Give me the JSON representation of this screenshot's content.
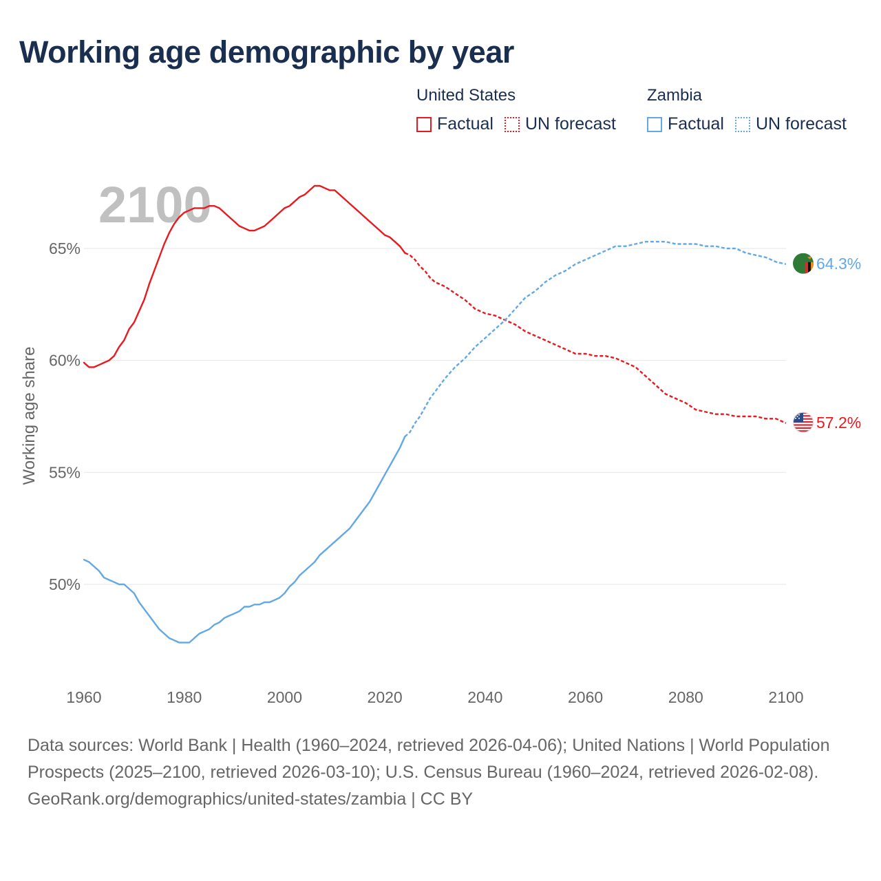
{
  "header": {
    "title": "Working age demographic by year"
  },
  "legend": {
    "groups": [
      {
        "name": "United States",
        "color": "#e8191f",
        "factual_label": "Factual",
        "forecast_label": "UN forecast"
      },
      {
        "name": "Zambia",
        "color": "#62a8e5",
        "factual_label": "Factual",
        "forecast_label": "UN forecast"
      }
    ]
  },
  "chart_data": {
    "type": "line",
    "title": "Working age demographic by year",
    "year_watermark": "2100",
    "xlabel": "",
    "ylabel": "Working age share",
    "xlim": [
      1960,
      2100
    ],
    "ylim": [
      46,
      68.5
    ],
    "x_ticks": [
      1960,
      1980,
      2000,
      2020,
      2040,
      2060,
      2080,
      2100
    ],
    "y_ticks": [
      50,
      55,
      60,
      65
    ],
    "y_tick_labels": [
      "50%",
      "55%",
      "60%",
      "65%"
    ],
    "grid": true,
    "forecast_start": 2024,
    "series": [
      {
        "name": "United States",
        "color": "#e8191f",
        "end_label": "57.2%",
        "flag": "us-flag",
        "points": [
          [
            1960,
            59.9
          ],
          [
            1961,
            59.7
          ],
          [
            1962,
            59.7
          ],
          [
            1963,
            59.8
          ],
          [
            1964,
            59.9
          ],
          [
            1965,
            60.0
          ],
          [
            1966,
            60.2
          ],
          [
            1967,
            60.6
          ],
          [
            1968,
            60.9
          ],
          [
            1969,
            61.4
          ],
          [
            1970,
            61.7
          ],
          [
            1971,
            62.2
          ],
          [
            1972,
            62.7
          ],
          [
            1973,
            63.4
          ],
          [
            1974,
            64.0
          ],
          [
            1975,
            64.6
          ],
          [
            1976,
            65.2
          ],
          [
            1977,
            65.7
          ],
          [
            1978,
            66.1
          ],
          [
            1979,
            66.4
          ],
          [
            1980,
            66.6
          ],
          [
            1981,
            66.7
          ],
          [
            1982,
            66.8
          ],
          [
            1983,
            66.8
          ],
          [
            1984,
            66.8
          ],
          [
            1985,
            66.9
          ],
          [
            1986,
            66.9
          ],
          [
            1987,
            66.8
          ],
          [
            1988,
            66.6
          ],
          [
            1989,
            66.4
          ],
          [
            1990,
            66.2
          ],
          [
            1991,
            66.0
          ],
          [
            1992,
            65.9
          ],
          [
            1993,
            65.8
          ],
          [
            1994,
            65.8
          ],
          [
            1995,
            65.9
          ],
          [
            1996,
            66.0
          ],
          [
            1997,
            66.2
          ],
          [
            1998,
            66.4
          ],
          [
            1999,
            66.6
          ],
          [
            2000,
            66.8
          ],
          [
            2001,
            66.9
          ],
          [
            2002,
            67.1
          ],
          [
            2003,
            67.3
          ],
          [
            2004,
            67.4
          ],
          [
            2005,
            67.6
          ],
          [
            2006,
            67.8
          ],
          [
            2007,
            67.8
          ],
          [
            2008,
            67.7
          ],
          [
            2009,
            67.6
          ],
          [
            2010,
            67.6
          ],
          [
            2011,
            67.4
          ],
          [
            2012,
            67.2
          ],
          [
            2013,
            67.0
          ],
          [
            2014,
            66.8
          ],
          [
            2015,
            66.6
          ],
          [
            2016,
            66.4
          ],
          [
            2017,
            66.2
          ],
          [
            2018,
            66.0
          ],
          [
            2019,
            65.8
          ],
          [
            2020,
            65.6
          ],
          [
            2021,
            65.5
          ],
          [
            2022,
            65.3
          ],
          [
            2023,
            65.1
          ],
          [
            2024,
            64.8
          ],
          [
            2025,
            64.7
          ],
          [
            2026,
            64.5
          ],
          [
            2027,
            64.2
          ],
          [
            2028,
            64.0
          ],
          [
            2029,
            63.7
          ],
          [
            2030,
            63.5
          ],
          [
            2032,
            63.3
          ],
          [
            2034,
            63.0
          ],
          [
            2036,
            62.7
          ],
          [
            2038,
            62.3
          ],
          [
            2040,
            62.1
          ],
          [
            2042,
            62.0
          ],
          [
            2044,
            61.8
          ],
          [
            2046,
            61.6
          ],
          [
            2048,
            61.3
          ],
          [
            2050,
            61.1
          ],
          [
            2052,
            60.9
          ],
          [
            2054,
            60.7
          ],
          [
            2056,
            60.5
          ],
          [
            2058,
            60.3
          ],
          [
            2060,
            60.3
          ],
          [
            2062,
            60.2
          ],
          [
            2064,
            60.2
          ],
          [
            2066,
            60.1
          ],
          [
            2068,
            59.9
          ],
          [
            2070,
            59.7
          ],
          [
            2072,
            59.3
          ],
          [
            2074,
            58.9
          ],
          [
            2076,
            58.5
          ],
          [
            2078,
            58.3
          ],
          [
            2080,
            58.1
          ],
          [
            2082,
            57.8
          ],
          [
            2084,
            57.7
          ],
          [
            2086,
            57.6
          ],
          [
            2088,
            57.6
          ],
          [
            2090,
            57.5
          ],
          [
            2092,
            57.5
          ],
          [
            2094,
            57.5
          ],
          [
            2096,
            57.4
          ],
          [
            2098,
            57.4
          ],
          [
            2100,
            57.2
          ]
        ]
      },
      {
        "name": "Zambia",
        "color": "#62a8e5",
        "end_label": "64.3%",
        "flag": "zambia-flag",
        "points": [
          [
            1960,
            51.1
          ],
          [
            1961,
            51.0
          ],
          [
            1962,
            50.8
          ],
          [
            1963,
            50.6
          ],
          [
            1964,
            50.3
          ],
          [
            1965,
            50.2
          ],
          [
            1966,
            50.1
          ],
          [
            1967,
            50.0
          ],
          [
            1968,
            50.0
          ],
          [
            1969,
            49.8
          ],
          [
            1970,
            49.6
          ],
          [
            1971,
            49.2
          ],
          [
            1972,
            48.9
          ],
          [
            1973,
            48.6
          ],
          [
            1974,
            48.3
          ],
          [
            1975,
            48.0
          ],
          [
            1976,
            47.8
          ],
          [
            1977,
            47.6
          ],
          [
            1978,
            47.5
          ],
          [
            1979,
            47.4
          ],
          [
            1980,
            47.4
          ],
          [
            1981,
            47.4
          ],
          [
            1982,
            47.6
          ],
          [
            1983,
            47.8
          ],
          [
            1984,
            47.9
          ],
          [
            1985,
            48.0
          ],
          [
            1986,
            48.2
          ],
          [
            1987,
            48.3
          ],
          [
            1988,
            48.5
          ],
          [
            1989,
            48.6
          ],
          [
            1990,
            48.7
          ],
          [
            1991,
            48.8
          ],
          [
            1992,
            49.0
          ],
          [
            1993,
            49.0
          ],
          [
            1994,
            49.1
          ],
          [
            1995,
            49.1
          ],
          [
            1996,
            49.2
          ],
          [
            1997,
            49.2
          ],
          [
            1998,
            49.3
          ],
          [
            1999,
            49.4
          ],
          [
            2000,
            49.6
          ],
          [
            2001,
            49.9
          ],
          [
            2002,
            50.1
          ],
          [
            2003,
            50.4
          ],
          [
            2004,
            50.6
          ],
          [
            2005,
            50.8
          ],
          [
            2006,
            51.0
          ],
          [
            2007,
            51.3
          ],
          [
            2008,
            51.5
          ],
          [
            2009,
            51.7
          ],
          [
            2010,
            51.9
          ],
          [
            2011,
            52.1
          ],
          [
            2012,
            52.3
          ],
          [
            2013,
            52.5
          ],
          [
            2014,
            52.8
          ],
          [
            2015,
            53.1
          ],
          [
            2016,
            53.4
          ],
          [
            2017,
            53.7
          ],
          [
            2018,
            54.1
          ],
          [
            2019,
            54.5
          ],
          [
            2020,
            54.9
          ],
          [
            2021,
            55.3
          ],
          [
            2022,
            55.7
          ],
          [
            2023,
            56.1
          ],
          [
            2024,
            56.6
          ],
          [
            2025,
            56.8
          ],
          [
            2026,
            57.2
          ],
          [
            2027,
            57.5
          ],
          [
            2028,
            57.9
          ],
          [
            2029,
            58.3
          ],
          [
            2030,
            58.6
          ],
          [
            2032,
            59.2
          ],
          [
            2034,
            59.7
          ],
          [
            2036,
            60.1
          ],
          [
            2038,
            60.6
          ],
          [
            2040,
            61.0
          ],
          [
            2042,
            61.4
          ],
          [
            2044,
            61.8
          ],
          [
            2046,
            62.3
          ],
          [
            2048,
            62.8
          ],
          [
            2050,
            63.1
          ],
          [
            2052,
            63.5
          ],
          [
            2054,
            63.8
          ],
          [
            2056,
            64.0
          ],
          [
            2058,
            64.3
          ],
          [
            2060,
            64.5
          ],
          [
            2062,
            64.7
          ],
          [
            2064,
            64.9
          ],
          [
            2066,
            65.1
          ],
          [
            2068,
            65.1
          ],
          [
            2070,
            65.2
          ],
          [
            2072,
            65.3
          ],
          [
            2074,
            65.3
          ],
          [
            2076,
            65.3
          ],
          [
            2078,
            65.2
          ],
          [
            2080,
            65.2
          ],
          [
            2082,
            65.2
          ],
          [
            2084,
            65.1
          ],
          [
            2086,
            65.1
          ],
          [
            2088,
            65.0
          ],
          [
            2090,
            65.0
          ],
          [
            2092,
            64.8
          ],
          [
            2094,
            64.7
          ],
          [
            2096,
            64.6
          ],
          [
            2098,
            64.4
          ],
          [
            2100,
            64.3
          ]
        ]
      }
    ]
  },
  "footer": {
    "sources": "Data sources: World Bank | Health (1960–2024, retrieved 2026-04-06); United Nations | World Population Prospects (2025–2100, retrieved 2026-03-10); U.S. Census Bureau (1960–2024, retrieved 2026-02-08).",
    "credit": "GeoRank.org/demographics/united-states/zambia | CC BY"
  }
}
